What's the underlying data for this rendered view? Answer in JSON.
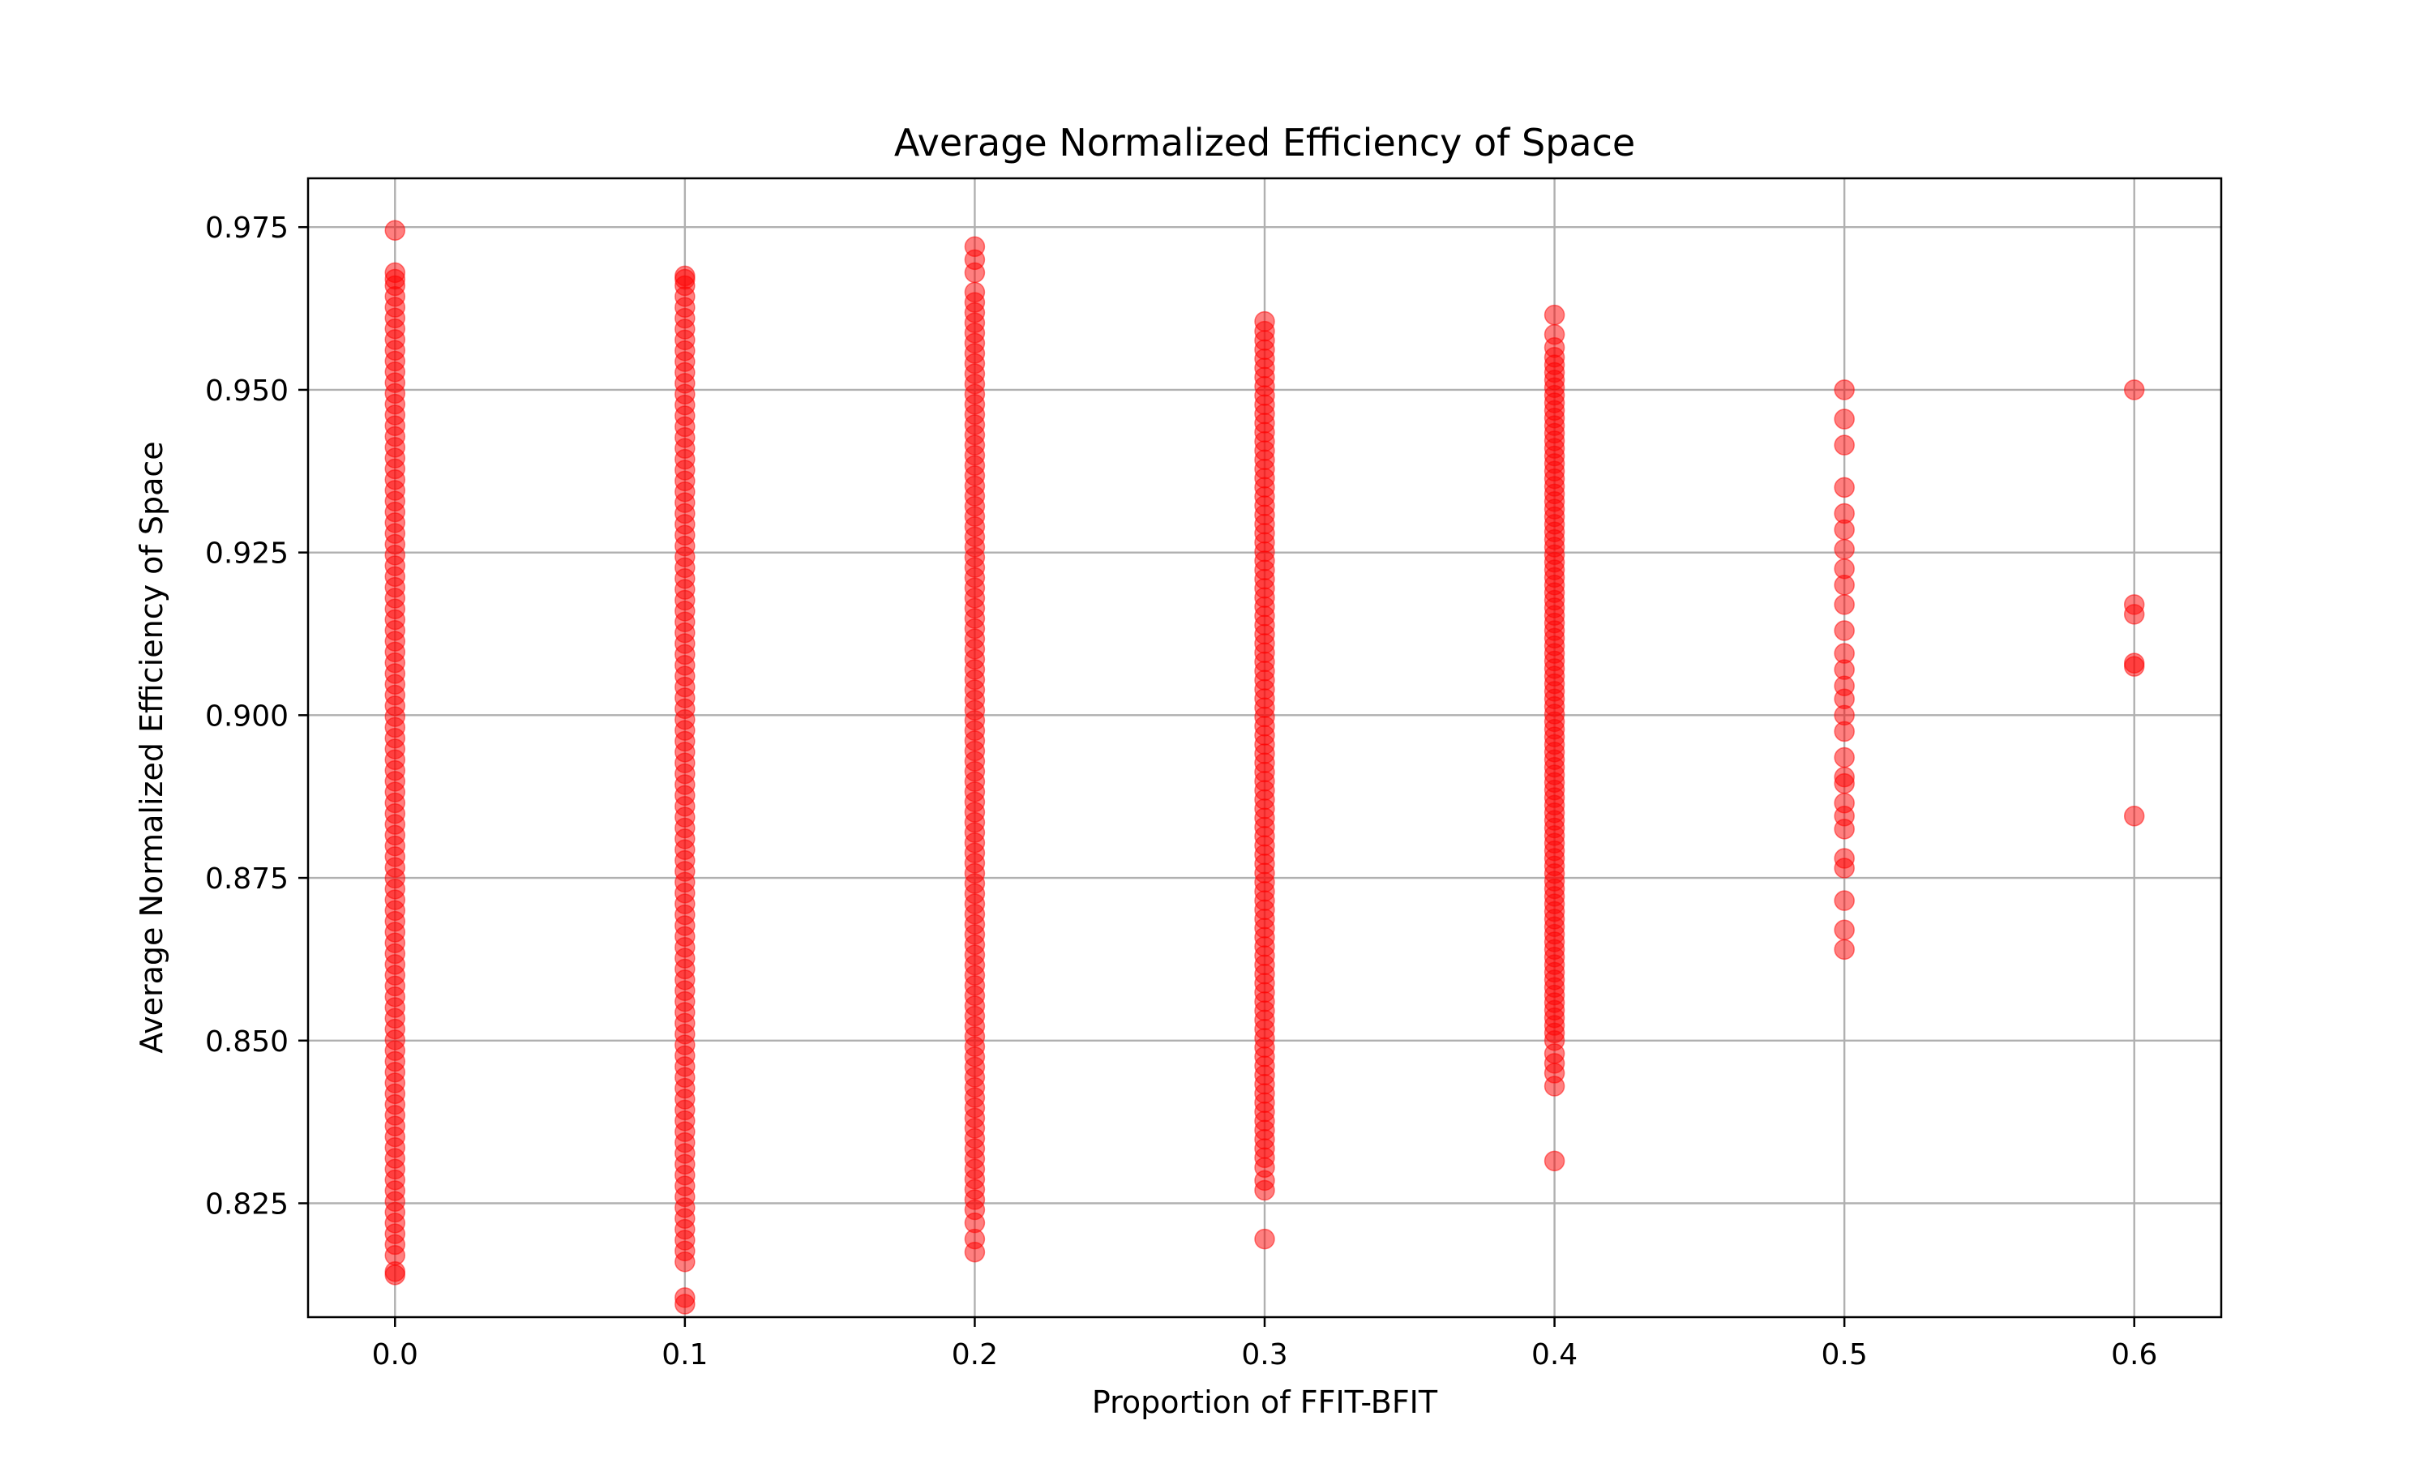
{
  "chart_data": {
    "type": "scatter",
    "title": "Average Normalized Efficiency of Space",
    "xlabel": "Proportion of FFIT-BFIT",
    "ylabel": "Average Normalized Efficiency of Space",
    "xlim": [
      -0.03,
      0.63
    ],
    "ylim": [
      0.8075,
      0.9825
    ],
    "x_ticks": [
      0.0,
      0.1,
      0.2,
      0.3,
      0.4,
      0.5,
      0.6
    ],
    "x_tick_labels": [
      "0.0",
      "0.1",
      "0.2",
      "0.3",
      "0.4",
      "0.5",
      "0.6"
    ],
    "y_ticks": [
      0.825,
      0.85,
      0.875,
      0.9,
      0.925,
      0.95,
      0.975
    ],
    "y_tick_labels": [
      "0.825",
      "0.850",
      "0.875",
      "0.900",
      "0.925",
      "0.950",
      "0.975"
    ],
    "grid": true,
    "marker_color": "#ff0000",
    "marker_alpha": 0.5,
    "dense_ranges": [
      {
        "x": 0.0,
        "y_min": 0.817,
        "y_max": 0.966
      },
      {
        "x": 0.1,
        "y_min": 0.816,
        "y_max": 0.966
      },
      {
        "x": 0.2,
        "y_min": 0.824,
        "y_max": 0.965
      },
      {
        "x": 0.3,
        "y_min": 0.832,
        "y_max": 0.959
      },
      {
        "x": 0.4,
        "y_min": 0.85,
        "y_max": 0.955
      }
    ],
    "points": [
      {
        "x": 0.0,
        "y": 0.9745
      },
      {
        "x": 0.0,
        "y": 0.968
      },
      {
        "x": 0.0,
        "y": 0.967
      },
      {
        "x": 0.0,
        "y": 0.8145
      },
      {
        "x": 0.0,
        "y": 0.814
      },
      {
        "x": 0.1,
        "y": 0.9675
      },
      {
        "x": 0.1,
        "y": 0.967
      },
      {
        "x": 0.1,
        "y": 0.8105
      },
      {
        "x": 0.1,
        "y": 0.8095
      },
      {
        "x": 0.2,
        "y": 0.972
      },
      {
        "x": 0.2,
        "y": 0.97
      },
      {
        "x": 0.2,
        "y": 0.968
      },
      {
        "x": 0.2,
        "y": 0.822
      },
      {
        "x": 0.2,
        "y": 0.8195
      },
      {
        "x": 0.2,
        "y": 0.8175
      },
      {
        "x": 0.3,
        "y": 0.9605
      },
      {
        "x": 0.3,
        "y": 0.8305
      },
      {
        "x": 0.3,
        "y": 0.8285
      },
      {
        "x": 0.3,
        "y": 0.827
      },
      {
        "x": 0.3,
        "y": 0.8195
      },
      {
        "x": 0.4,
        "y": 0.9615
      },
      {
        "x": 0.4,
        "y": 0.9585
      },
      {
        "x": 0.4,
        "y": 0.9565
      },
      {
        "x": 0.4,
        "y": 0.848
      },
      {
        "x": 0.4,
        "y": 0.8465
      },
      {
        "x": 0.4,
        "y": 0.845
      },
      {
        "x": 0.4,
        "y": 0.843
      },
      {
        "x": 0.4,
        "y": 0.8315
      },
      {
        "x": 0.5,
        "y": 0.95
      },
      {
        "x": 0.5,
        "y": 0.9455
      },
      {
        "x": 0.5,
        "y": 0.9415
      },
      {
        "x": 0.5,
        "y": 0.935
      },
      {
        "x": 0.5,
        "y": 0.931
      },
      {
        "x": 0.5,
        "y": 0.9285
      },
      {
        "x": 0.5,
        "y": 0.9255
      },
      {
        "x": 0.5,
        "y": 0.9225
      },
      {
        "x": 0.5,
        "y": 0.92
      },
      {
        "x": 0.5,
        "y": 0.917
      },
      {
        "x": 0.5,
        "y": 0.913
      },
      {
        "x": 0.5,
        "y": 0.9095
      },
      {
        "x": 0.5,
        "y": 0.907
      },
      {
        "x": 0.5,
        "y": 0.9045
      },
      {
        "x": 0.5,
        "y": 0.9025
      },
      {
        "x": 0.5,
        "y": 0.9
      },
      {
        "x": 0.5,
        "y": 0.8975
      },
      {
        "x": 0.5,
        "y": 0.8935
      },
      {
        "x": 0.5,
        "y": 0.8905
      },
      {
        "x": 0.5,
        "y": 0.8895
      },
      {
        "x": 0.5,
        "y": 0.8865
      },
      {
        "x": 0.5,
        "y": 0.8845
      },
      {
        "x": 0.5,
        "y": 0.8825
      },
      {
        "x": 0.5,
        "y": 0.878
      },
      {
        "x": 0.5,
        "y": 0.8765
      },
      {
        "x": 0.5,
        "y": 0.8715
      },
      {
        "x": 0.5,
        "y": 0.867
      },
      {
        "x": 0.5,
        "y": 0.864
      },
      {
        "x": 0.6,
        "y": 0.95
      },
      {
        "x": 0.6,
        "y": 0.917
      },
      {
        "x": 0.6,
        "y": 0.9155
      },
      {
        "x": 0.6,
        "y": 0.908
      },
      {
        "x": 0.6,
        "y": 0.9075
      },
      {
        "x": 0.6,
        "y": 0.8845
      }
    ]
  }
}
